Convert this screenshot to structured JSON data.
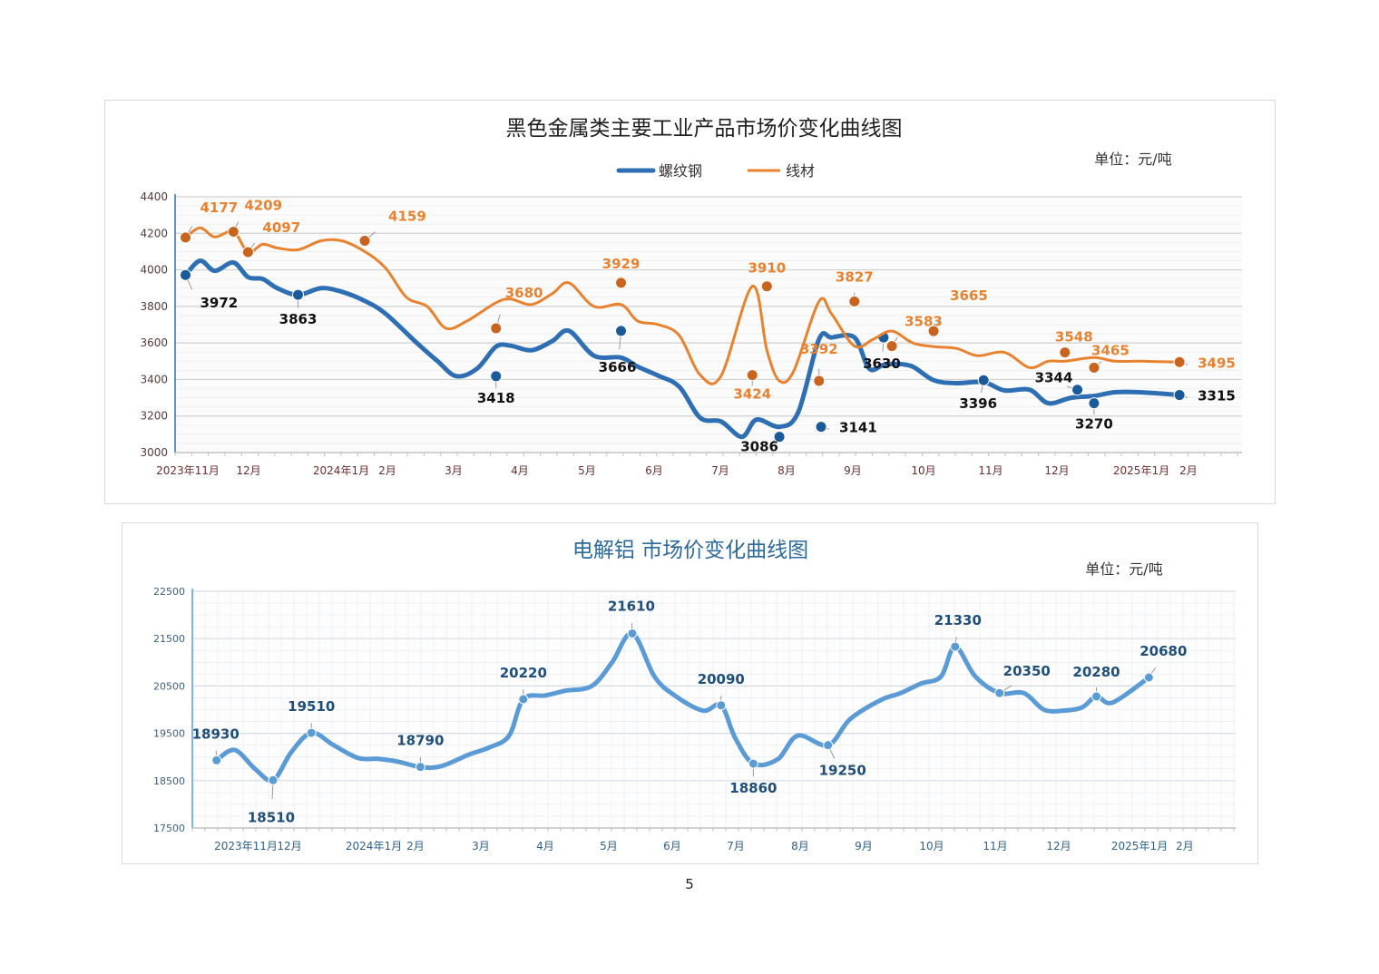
{
  "page": {
    "number": "5"
  },
  "chart_data": [
    {
      "type": "line",
      "title": "黑色金属类主要工业产品市场价变化曲线图",
      "unit": "单位：元/吨",
      "ylim": [
        3000,
        4400
      ],
      "yticks": [
        "3000",
        "3200",
        "3400",
        "3600",
        "3800",
        "4000",
        "4200",
        "4400"
      ],
      "xticks": [
        "2023年11月",
        "12月",
        "2024年1月",
        "2月",
        "3月",
        "4月",
        "5月",
        "6月",
        "7月",
        "8月",
        "9月",
        "10月",
        "11月",
        "12月",
        "2025年1月",
        "2月"
      ],
      "grid": true,
      "legend_position": "top",
      "series": [
        {
          "name": "螺纹钢",
          "color": "#2e6fb4",
          "x": [
            "2023-11-01",
            "2023-11-08",
            "2023-11-15",
            "2023-11-24",
            "2023-12-01",
            "2023-12-08",
            "2023-12-15",
            "2023-12-25",
            "2024-01-05",
            "2024-01-15",
            "2024-01-26",
            "2024-02-05",
            "2024-02-20",
            "2024-03-01",
            "2024-03-10",
            "2024-03-20",
            "2024-03-29",
            "2024-04-05",
            "2024-04-15",
            "2024-04-25",
            "2024-05-03",
            "2024-05-15",
            "2024-05-28",
            "2024-06-05",
            "2024-06-15",
            "2024-06-25",
            "2024-07-05",
            "2024-07-15",
            "2024-07-25",
            "2024-08-01",
            "2024-08-12",
            "2024-08-21",
            "2024-08-31",
            "2024-09-06",
            "2024-09-17",
            "2024-09-24",
            "2024-10-01",
            "2024-10-07",
            "2024-10-15",
            "2024-10-25",
            "2024-11-05",
            "2024-11-18",
            "2024-11-28",
            "2024-12-10",
            "2024-12-19",
            "2024-12-30",
            "2025-01-10",
            "2025-01-20",
            "2025-02-01",
            "2025-02-20"
          ],
          "values": [
            3972,
            4050,
            3995,
            4040,
            3960,
            3950,
            3900,
            3863,
            3900,
            3880,
            3830,
            3760,
            3600,
            3500,
            3418,
            3460,
            3580,
            3585,
            3560,
            3610,
            3666,
            3530,
            3520,
            3470,
            3420,
            3360,
            3190,
            3170,
            3086,
            3180,
            3141,
            3220,
            3620,
            3630,
            3630,
            3460,
            3480,
            3485,
            3470,
            3396,
            3380,
            3385,
            3340,
            3344,
            3270,
            3300,
            3310,
            3330,
            3330,
            3315
          ],
          "labels": [
            {
              "date": "2023-11-01",
              "value": 3972,
              "text": "3972"
            },
            {
              "date": "2023-12-25",
              "value": 3863,
              "text": "3863"
            },
            {
              "date": "2024-03-29",
              "value": 3418,
              "text": "3418"
            },
            {
              "date": "2024-05-28",
              "value": 3666,
              "text": "3666"
            },
            {
              "date": "2024-08-12",
              "value": 3086,
              "text": "3086"
            },
            {
              "date": "2024-09-01",
              "value": 3141,
              "text": "3141"
            },
            {
              "date": "2024-10-01",
              "value": 3630,
              "text": "3630"
            },
            {
              "date": "2024-11-18",
              "value": 3396,
              "text": "3396"
            },
            {
              "date": "2025-01-02",
              "value": 3344,
              "text": "3344"
            },
            {
              "date": "2025-01-10",
              "value": 3270,
              "text": "3270"
            },
            {
              "date": "2025-02-20",
              "value": 3315,
              "text": "3315"
            }
          ]
        },
        {
          "name": "线材",
          "color": "#e8822f",
          "x": [
            "2023-11-01",
            "2023-11-08",
            "2023-11-15",
            "2023-11-24",
            "2023-12-01",
            "2023-12-08",
            "2023-12-15",
            "2023-12-25",
            "2024-01-05",
            "2024-01-15",
            "2024-01-26",
            "2024-02-05",
            "2024-02-15",
            "2024-02-25",
            "2024-03-05",
            "2024-03-15",
            "2024-03-29",
            "2024-04-05",
            "2024-04-15",
            "2024-04-25",
            "2024-05-03",
            "2024-05-15",
            "2024-05-28",
            "2024-06-05",
            "2024-06-15",
            "2024-06-25",
            "2024-07-05",
            "2024-07-15",
            "2024-07-30",
            "2024-08-06",
            "2024-08-12",
            "2024-08-19",
            "2024-08-31",
            "2024-09-06",
            "2024-09-17",
            "2024-09-26",
            "2024-10-05",
            "2024-10-15",
            "2024-10-25",
            "2024-11-05",
            "2024-11-15",
            "2024-11-28",
            "2024-12-10",
            "2024-12-19",
            "2024-12-27",
            "2025-01-10",
            "2025-01-20",
            "2025-02-01",
            "2025-02-20"
          ],
          "values": [
            4177,
            4230,
            4180,
            4209,
            4097,
            4140,
            4120,
            4110,
            4159,
            4159,
            4100,
            4010,
            3850,
            3800,
            3680,
            3720,
            3820,
            3840,
            3810,
            3870,
            3929,
            3800,
            3810,
            3720,
            3700,
            3640,
            3424,
            3420,
            3910,
            3560,
            3392,
            3450,
            3827,
            3760,
            3583,
            3620,
            3665,
            3600,
            3580,
            3570,
            3530,
            3548,
            3465,
            3500,
            3500,
            3520,
            3500,
            3500,
            3495
          ],
          "labels": [
            {
              "date": "2023-11-01",
              "value": 4177,
              "text": "4177"
            },
            {
              "date": "2023-11-24",
              "value": 4209,
              "text": "4209"
            },
            {
              "date": "2023-12-01",
              "value": 4097,
              "text": "4097"
            },
            {
              "date": "2024-01-26",
              "value": 4159,
              "text": "4159"
            },
            {
              "date": "2024-03-29",
              "value": 3680,
              "text": "3680"
            },
            {
              "date": "2024-05-28",
              "value": 3929,
              "text": "3929"
            },
            {
              "date": "2024-07-30",
              "value": 3424,
              "text": "3424"
            },
            {
              "date": "2024-08-06",
              "value": 3910,
              "text": "3910"
            },
            {
              "date": "2024-08-31",
              "value": 3392,
              "text": "3392"
            },
            {
              "date": "2024-09-17",
              "value": 3827,
              "text": "3827"
            },
            {
              "date": "2024-10-05",
              "value": 3583,
              "text": "3583"
            },
            {
              "date": "2024-10-25",
              "value": 3665,
              "text": "3665"
            },
            {
              "date": "2024-12-27",
              "value": 3548,
              "text": "3548"
            },
            {
              "date": "2025-01-10",
              "value": 3465,
              "text": "3465"
            },
            {
              "date": "2025-02-20",
              "value": 3495,
              "text": "3495"
            }
          ]
        }
      ]
    },
    {
      "type": "line",
      "title": "电解铝  市场价变化曲线图",
      "unit": "单位：元/吨",
      "ylim": [
        17500,
        22500
      ],
      "yticks": [
        "17500",
        "18500",
        "19500",
        "20500",
        "21500",
        "22500"
      ],
      "xticks": [
        "2023年11月",
        "12月",
        "2024年1月",
        "2月",
        "3月",
        "4月",
        "5月",
        "6月",
        "7月",
        "8月",
        "9月",
        "10月",
        "11月",
        "12月",
        "2025年1月",
        "2月"
      ],
      "grid": true,
      "series": [
        {
          "color": "#5b9bd5",
          "x": [
            "2023-11-01",
            "2023-11-10",
            "2023-11-20",
            "2023-11-29",
            "2023-12-08",
            "2023-12-18",
            "2023-12-29",
            "2024-01-10",
            "2024-01-20",
            "2024-01-30",
            "2024-02-10",
            "2024-02-20",
            "2024-03-05",
            "2024-03-15",
            "2024-03-25",
            "2024-04-01",
            "2024-04-12",
            "2024-04-22",
            "2024-05-05",
            "2024-05-15",
            "2024-05-25",
            "2024-06-05",
            "2024-06-15",
            "2024-06-29",
            "2024-07-08",
            "2024-07-15",
            "2024-07-24",
            "2024-08-05",
            "2024-08-15",
            "2024-08-30",
            "2024-09-10",
            "2024-09-25",
            "2024-10-05",
            "2024-10-15",
            "2024-10-25",
            "2024-11-01",
            "2024-11-11",
            "2024-11-23",
            "2024-12-05",
            "2024-12-15",
            "2024-12-25",
            "2025-01-03",
            "2025-01-10",
            "2025-01-18",
            "2025-02-05"
          ],
          "values": [
            18930,
            19150,
            18750,
            18510,
            19100,
            19510,
            19250,
            18980,
            18960,
            18900,
            18790,
            18800,
            19050,
            19200,
            19450,
            20220,
            20300,
            20400,
            20500,
            21000,
            21610,
            20700,
            20300,
            19980,
            20090,
            19400,
            18860,
            18950,
            19450,
            19250,
            19800,
            20200,
            20350,
            20550,
            20700,
            21330,
            20700,
            20350,
            20350,
            20000,
            19980,
            20050,
            20280,
            20150,
            20680
          ],
          "labels": [
            {
              "date": "2023-11-01",
              "value": 18930,
              "text": "18930"
            },
            {
              "date": "2023-11-29",
              "value": 18510,
              "text": "18510"
            },
            {
              "date": "2023-12-18",
              "value": 19510,
              "text": "19510"
            },
            {
              "date": "2024-02-10",
              "value": 18790,
              "text": "18790"
            },
            {
              "date": "2024-04-01",
              "value": 20220,
              "text": "20220"
            },
            {
              "date": "2024-05-25",
              "value": 21610,
              "text": "21610"
            },
            {
              "date": "2024-07-08",
              "value": 20090,
              "text": "20090"
            },
            {
              "date": "2024-07-24",
              "value": 18860,
              "text": "18860"
            },
            {
              "date": "2024-08-30",
              "value": 19250,
              "text": "19250"
            },
            {
              "date": "2024-11-01",
              "value": 21330,
              "text": "21330"
            },
            {
              "date": "2024-11-23",
              "value": 20350,
              "text": "20350"
            },
            {
              "date": "2025-01-10",
              "value": 20280,
              "text": "20280"
            },
            {
              "date": "2025-02-05",
              "value": 20680,
              "text": "20680"
            }
          ]
        }
      ]
    }
  ]
}
